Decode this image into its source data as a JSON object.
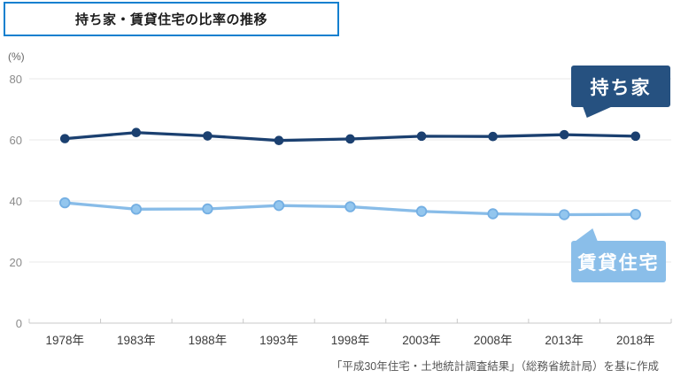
{
  "title": "持ち家・賃貸住宅の比率の推移",
  "source_note": "「平成30年住宅・土地統計調査結果」（総務省統計局）を基に作成",
  "colors": {
    "title_border": "#1280cf",
    "owner_bubble": "#265180",
    "owner_line": "#1b4070",
    "rental_bubble": "#8abee9",
    "rental_line": "#88bce8",
    "grid_line": "#e9e9e9",
    "axis_line": "#c8c8c8"
  },
  "chart_data": {
    "type": "line",
    "title": "持ち家・賃貸住宅の比率の推移",
    "categories": [
      "1978年",
      "1983年",
      "1988年",
      "1993年",
      "1998年",
      "2003年",
      "2008年",
      "2013年",
      "2018年"
    ],
    "series": [
      {
        "name": "持ち家",
        "values": [
          60.4,
          62.4,
          61.3,
          59.8,
          60.3,
          61.2,
          61.1,
          61.7,
          61.2
        ],
        "color": "#1b4070",
        "point_fill": "#1b4070",
        "point_stroke": "none"
      },
      {
        "name": "賃貸住宅",
        "values": [
          39.4,
          37.3,
          37.4,
          38.5,
          38.1,
          36.6,
          35.8,
          35.5,
          35.6
        ],
        "color": "#88bce8",
        "point_fill": "#93c6ee",
        "point_stroke": "#74afe3"
      }
    ],
    "xlabel": "",
    "ylabel": "(%)",
    "ylabel_unit": "(%)",
    "yticks": [
      0,
      20,
      40,
      60,
      80
    ],
    "ylim": [
      0,
      88
    ],
    "grid": "horizontal",
    "legend_position": "callout-bubbles-right",
    "source": "「平成30年住宅・土地統計調査結果」（総務省統計局）を基に作成"
  }
}
